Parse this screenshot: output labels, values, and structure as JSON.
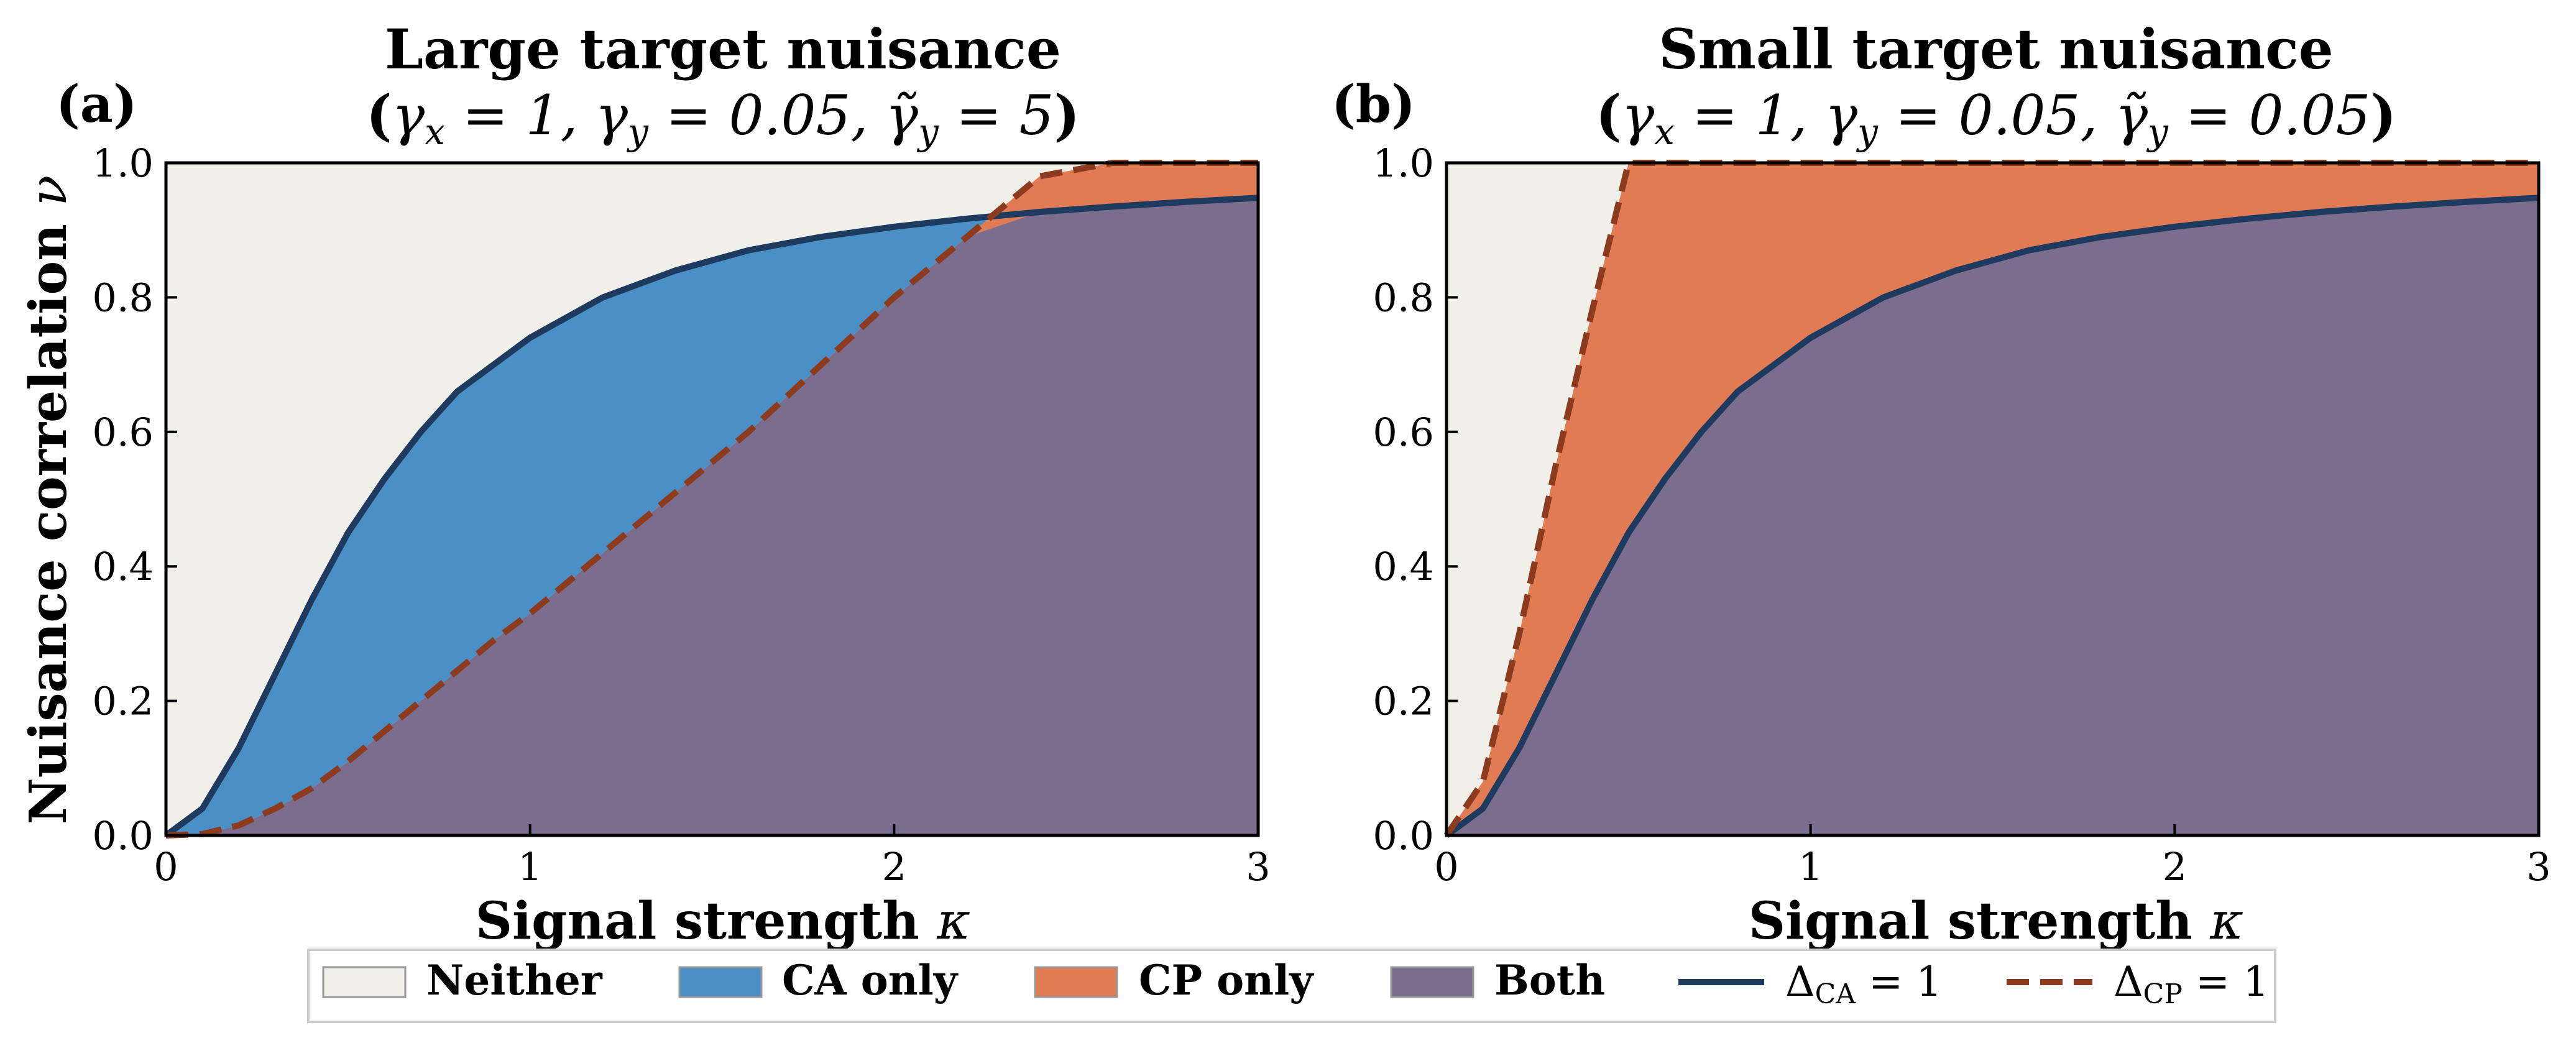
{
  "colors": {
    "neither": "#f0efea",
    "ca_only": "#4a90c6",
    "cp_only": "#e07b54",
    "both": "#7b6d8d",
    "ca_line": "#1e3a5f",
    "cp_line": "#8c3b1e"
  },
  "chart_data": [
    {
      "type": "area",
      "panel_label": "(a)",
      "title": "Large target nuisance",
      "subtitle_parts": {
        "open": "(",
        "gx": "γ",
        "gx_sub": "x",
        "eq1": " = 1,  ",
        "gy": "γ",
        "gy_sub": "y",
        "eq2": " = 0.05,  ",
        "gt": "γ̃",
        "gt_sub": "y",
        "eq3": " = 5",
        "close": ")"
      },
      "xlabel": "Signal strength",
      "xlabel_symbol": "κ",
      "ylabel": "Nuisance correlation",
      "ylabel_symbol": "ν",
      "xlim": [
        0,
        3
      ],
      "ylim": [
        0,
        1
      ],
      "xticks": [
        "0",
        "1",
        "2",
        "3"
      ],
      "yticks": [
        "0.0",
        "0.2",
        "0.4",
        "0.6",
        "0.8",
        "1.0"
      ],
      "kappa": [
        0,
        0.1,
        0.2,
        0.3,
        0.4,
        0.5,
        0.6,
        0.7,
        0.8,
        0.9,
        1.0,
        1.2,
        1.4,
        1.6,
        1.8,
        2.0,
        2.2,
        2.4,
        2.6,
        2.8,
        3.0
      ],
      "delta_ca_1": [
        0,
        0.04,
        0.13,
        0.24,
        0.35,
        0.45,
        0.53,
        0.6,
        0.66,
        0.7,
        0.74,
        0.8,
        0.84,
        0.87,
        0.89,
        0.905,
        0.917,
        0.927,
        0.935,
        0.942,
        0.948
      ],
      "delta_cp_1": [
        0,
        0.002,
        0.015,
        0.04,
        0.07,
        0.11,
        0.155,
        0.2,
        0.245,
        0.29,
        0.33,
        0.42,
        0.51,
        0.6,
        0.7,
        0.8,
        0.89,
        0.98,
        1.0,
        1.0,
        1.0
      ]
    },
    {
      "type": "area",
      "panel_label": "(b)",
      "title": "Small target nuisance",
      "subtitle_parts": {
        "open": "(",
        "gx": "γ",
        "gx_sub": "x",
        "eq1": " = 1,  ",
        "gy": "γ",
        "gy_sub": "y",
        "eq2": " = 0.05,  ",
        "gt": "γ̃",
        "gt_sub": "y",
        "eq3": " = 0.05",
        "close": ")"
      },
      "xlabel": "Signal strength",
      "xlabel_symbol": "κ",
      "xlim": [
        0,
        3
      ],
      "ylim": [
        0,
        1
      ],
      "xticks": [
        "0",
        "1",
        "2",
        "3"
      ],
      "yticks": [
        "0.0",
        "0.2",
        "0.4",
        "0.6",
        "0.8",
        "1.0"
      ],
      "kappa": [
        0,
        0.1,
        0.2,
        0.3,
        0.4,
        0.5,
        0.6,
        0.7,
        0.8,
        0.9,
        1.0,
        1.2,
        1.4,
        1.6,
        1.8,
        2.0,
        2.2,
        2.4,
        2.6,
        2.8,
        3.0
      ],
      "delta_ca_1": [
        0,
        0.04,
        0.13,
        0.24,
        0.35,
        0.45,
        0.53,
        0.6,
        0.66,
        0.7,
        0.74,
        0.8,
        0.84,
        0.87,
        0.89,
        0.905,
        0.917,
        0.927,
        0.935,
        0.942,
        0.948
      ],
      "delta_cp_1": [
        0,
        0.08,
        0.3,
        0.55,
        0.78,
        1.0,
        1.0,
        1.0,
        1.0,
        1.0,
        1.0,
        1.0,
        1.0,
        1.0,
        1.0,
        1.0,
        1.0,
        1.0,
        1.0,
        1.0,
        1.0
      ]
    }
  ],
  "legend": {
    "neither": "Neither",
    "ca_only": "CA only",
    "cp_only": "CP only",
    "both": "Both",
    "ca_line_delta": "Δ",
    "ca_line_sub": "CA",
    "ca_line_eq": " = 1",
    "cp_line_delta": "Δ",
    "cp_line_sub": "CP",
    "cp_line_eq": " = 1"
  }
}
